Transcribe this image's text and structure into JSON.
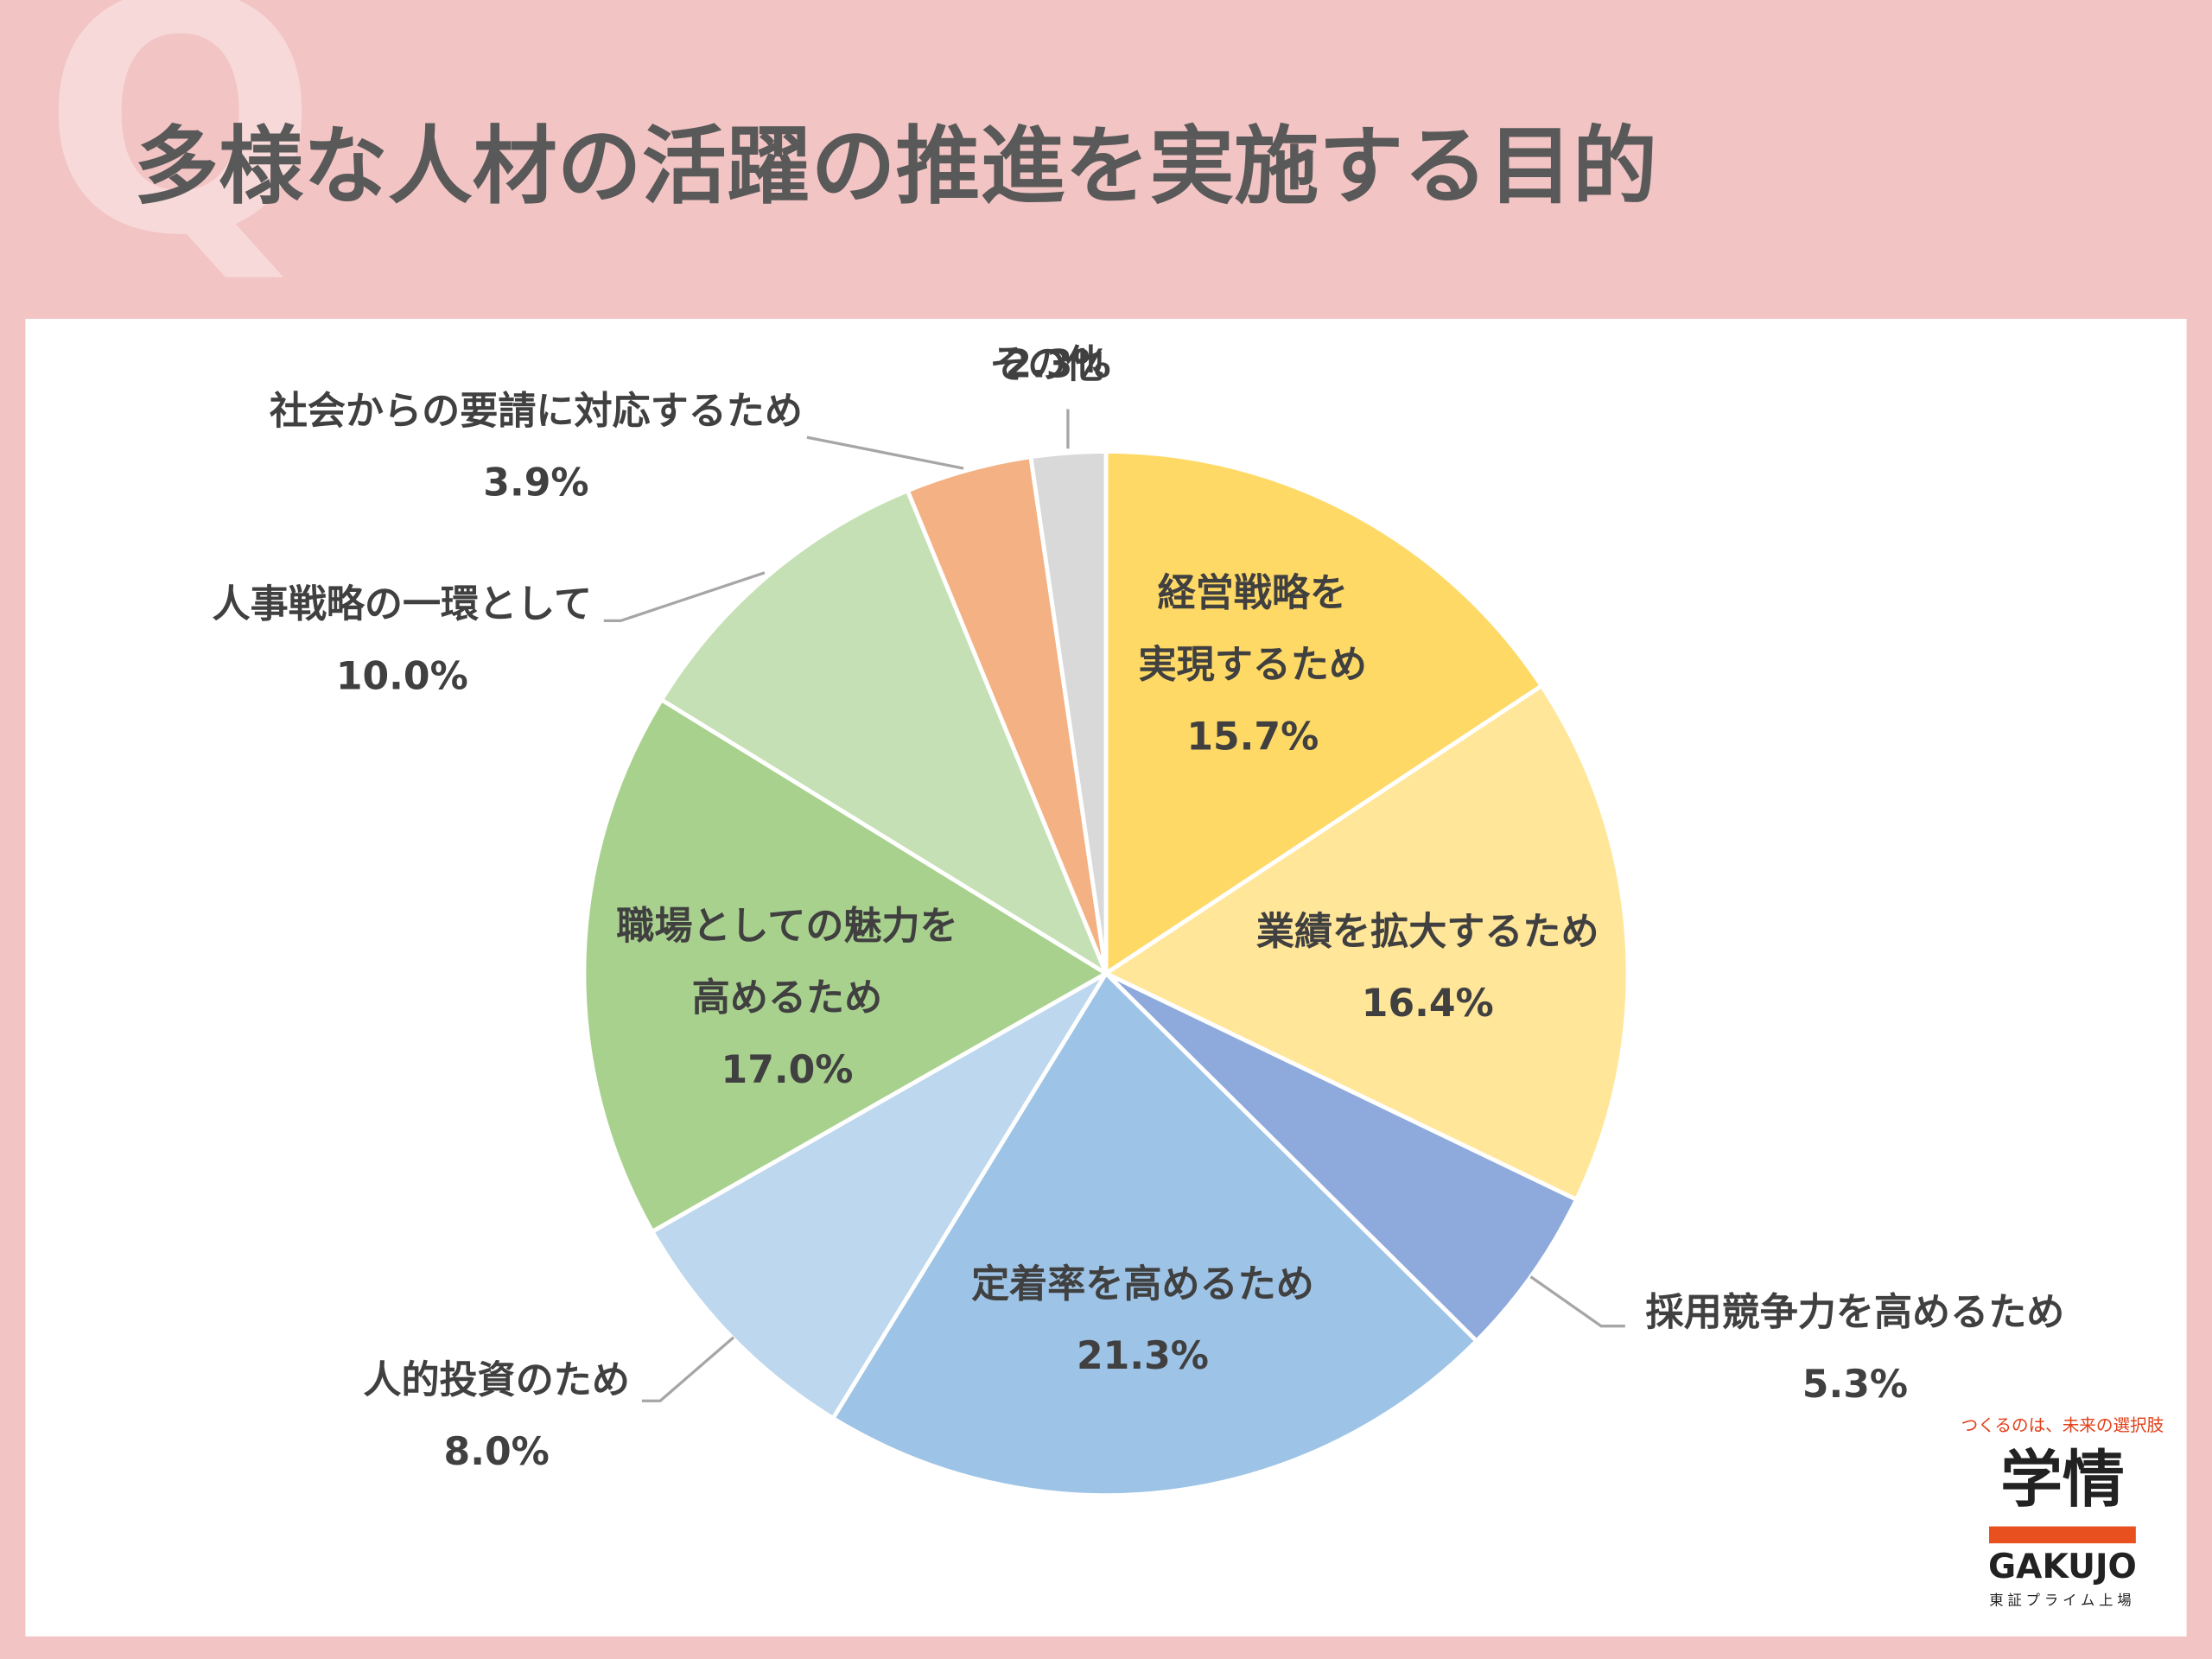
{
  "chart_data": {
    "type": "pie",
    "title": "多様な人材の活躍の推進を実施する目的",
    "categories": [
      "経営戦略を実現するため",
      "業績を拡大するため",
      "採用競争力を高めるため",
      "定着率を高めるため",
      "人的投資のため",
      "職場としての魅力を高めるため",
      "人事戦略の一環として",
      "社会からの要請に対応するため",
      "その他"
    ],
    "values": [
      15.7,
      16.4,
      5.3,
      21.3,
      8.0,
      17.0,
      10.0,
      3.9,
      2.3
    ],
    "value_labels": [
      "15.7%",
      "16.4%",
      "5.3%",
      "21.3%",
      "8.0%",
      "17.0%",
      "10.0%",
      "3.9%",
      "2.3%"
    ],
    "colors": [
      "#ffd966",
      "#ffe699",
      "#8ea9db",
      "#9dc3e6",
      "#bdd7ee",
      "#a9d18e",
      "#c5e0b4",
      "#f4b183",
      "#d9d9d9"
    ]
  },
  "logo": {
    "tagline": "つくるのは、未来の選択肢",
    "name": "学情",
    "latin": "GAKUJO",
    "note": "東証プライム上場"
  }
}
